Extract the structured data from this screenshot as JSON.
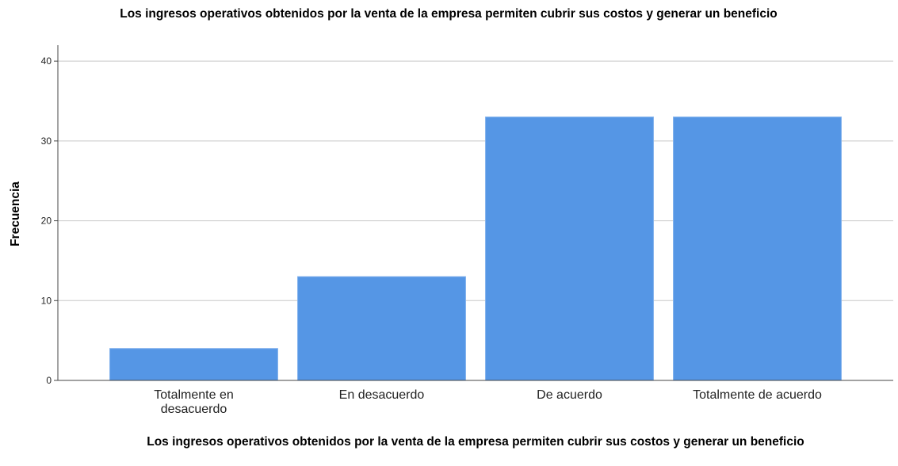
{
  "chart_data": {
    "type": "bar",
    "title": "Los ingresos operativos obtenidos por la venta de la empresa permiten cubrir sus costos y generar un beneficio",
    "x_label": "Los ingresos operativos obtenidos por la venta de la empresa permiten cubrir sus costos y generar un beneficio",
    "y_label": "Frecuencia",
    "categories": [
      "Totalmente en desacuerdo",
      "En desacuerdo",
      "De acuerdo",
      "Totalmente de acuerdo"
    ],
    "values": [
      4,
      13,
      33,
      33
    ],
    "color": "#5596e5",
    "ylim": [
      0,
      42
    ],
    "yticks": [
      0,
      10,
      20,
      30,
      40
    ],
    "grid": true
  }
}
